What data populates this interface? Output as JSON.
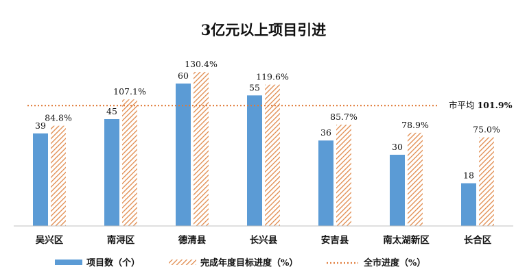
{
  "chart_data": {
    "type": "bar",
    "title": "3亿元以上项目引进",
    "categories": [
      "吴兴区",
      "南浔区",
      "德清县",
      "长兴县",
      "安吉县",
      "南太湖新区",
      "长合区"
    ],
    "series": [
      {
        "name": "项目数（个）",
        "values": [
          39,
          45,
          60,
          55,
          36,
          30,
          18
        ],
        "labels": [
          "39",
          "45",
          "60",
          "55",
          "36",
          "30",
          "18"
        ],
        "color": "#5b9bd5",
        "style": "solid"
      },
      {
        "name": "完成年度目标进度（%）",
        "values": [
          84.8,
          107.1,
          130.4,
          119.6,
          85.7,
          78.9,
          75.0
        ],
        "labels": [
          "84.8%",
          "107.1%",
          "130.4%",
          "119.6%",
          "85.7%",
          "78.9%",
          "75.0%"
        ],
        "color": "#e0894a",
        "style": "hatched"
      }
    ],
    "reference_line": {
      "name": "全市进度（%）",
      "value": 101.9,
      "label_prefix": "市平均",
      "label_value": "101.9%",
      "color": "#e07b39",
      "style": "dotted"
    },
    "grid": false,
    "legend_position": "bottom"
  }
}
